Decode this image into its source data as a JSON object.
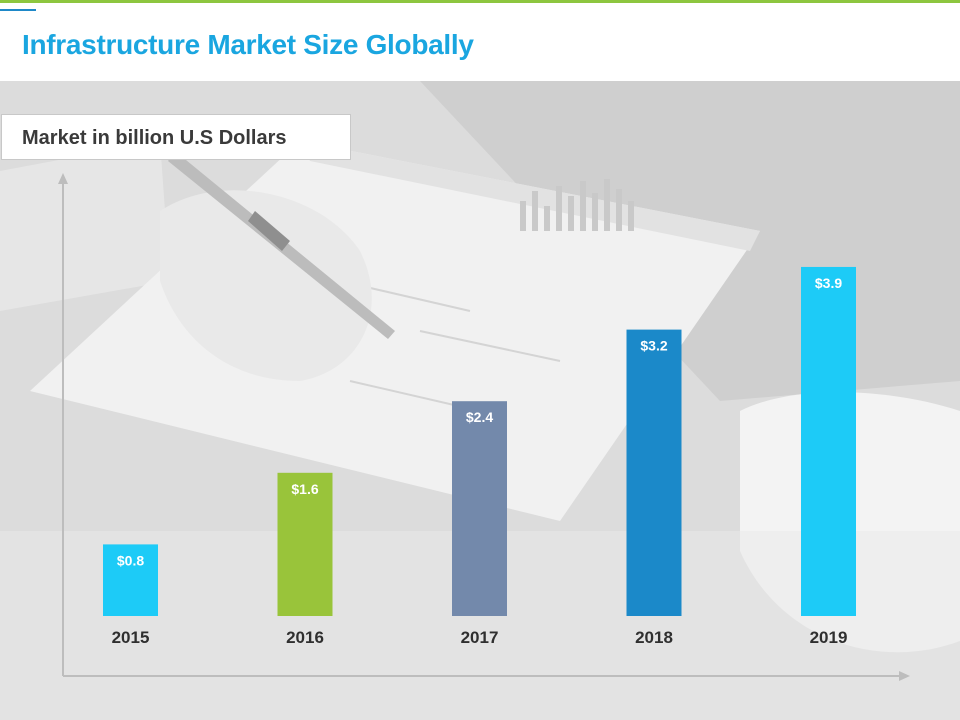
{
  "page": {
    "title": "Infrastructure Market Size Globally"
  },
  "chart_data": {
    "type": "bar",
    "title": "",
    "ylabel": "Market in billion U.S Dollars",
    "xlabel": "",
    "categories": [
      "2015",
      "2016",
      "2017",
      "2018",
      "2019"
    ],
    "values": [
      0.8,
      1.6,
      2.4,
      3.2,
      3.9
    ],
    "data_labels": [
      "$0.8",
      "$1.6",
      "$2.4",
      "$3.2",
      "$3.9"
    ],
    "colors": [
      "#1dcbf7",
      "#99c43a",
      "#7389ab",
      "#1b89c9",
      "#1dcbf7"
    ],
    "ylim": [
      0,
      5
    ],
    "grid": false,
    "legend": "none"
  }
}
